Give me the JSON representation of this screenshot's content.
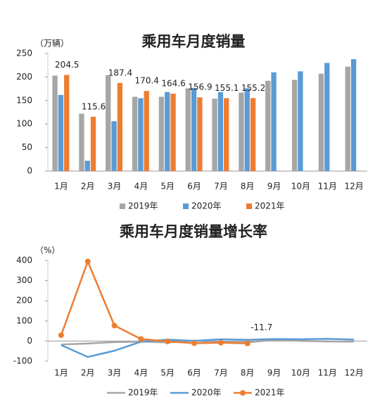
{
  "chart_data": [
    {
      "type": "bar",
      "title": "乘用车月度销量",
      "ylabel": "（万辆）",
      "categories": [
        "1月",
        "2月",
        "3月",
        "4月",
        "5月",
        "6月",
        "7月",
        "8月",
        "9月",
        "10月",
        "11月",
        "12月"
      ],
      "series": [
        {
          "name": "2019年",
          "color": "#a6a6a6",
          "values": [
            203,
            122,
            204,
            158,
            158,
            176,
            154,
            167,
            192,
            194,
            207,
            222
          ]
        },
        {
          "name": "2020年",
          "color": "#5b9bd5",
          "values": [
            162,
            22,
            106,
            155,
            168,
            177,
            168,
            176,
            210,
            212,
            230,
            238
          ]
        },
        {
          "name": "2021年",
          "color": "#ed7d31",
          "values": [
            204.5,
            115.6,
            187.4,
            170.4,
            164.6,
            156.9,
            155.1,
            155.2,
            null,
            null,
            null,
            null
          ]
        }
      ],
      "ylim": [
        0,
        250
      ],
      "yticks": [
        0,
        50,
        100,
        150,
        200,
        250
      ],
      "grid": false
    },
    {
      "type": "line",
      "title": "乘用车月度销量增长率",
      "ylabel": "（%）",
      "categories": [
        "1月",
        "2月",
        "3月",
        "4月",
        "5月",
        "6月",
        "7月",
        "8月",
        "9月",
        "10月",
        "11月",
        "12月"
      ],
      "series": [
        {
          "name": "2019年",
          "color": "#a6a6a6",
          "values": [
            -17,
            -12,
            -5,
            -3,
            -7,
            2,
            -6,
            -7,
            6,
            1,
            -2,
            -3
          ]
        },
        {
          "name": "2020年",
          "color": "#5b9bd5",
          "values": [
            -20,
            -79,
            -48,
            -3,
            7,
            1,
            9,
            6,
            10,
            9,
            11,
            7
          ]
        },
        {
          "name": "2021年",
          "color": "#ed7d31",
          "values": [
            29,
            395,
            77,
            10,
            -2,
            -11,
            -8,
            -11.7,
            null,
            null,
            null,
            null
          ]
        }
      ],
      "ylim": [
        -100,
        400
      ],
      "yticks": [
        -100,
        0,
        100,
        200,
        300,
        400
      ],
      "grid": false
    }
  ]
}
